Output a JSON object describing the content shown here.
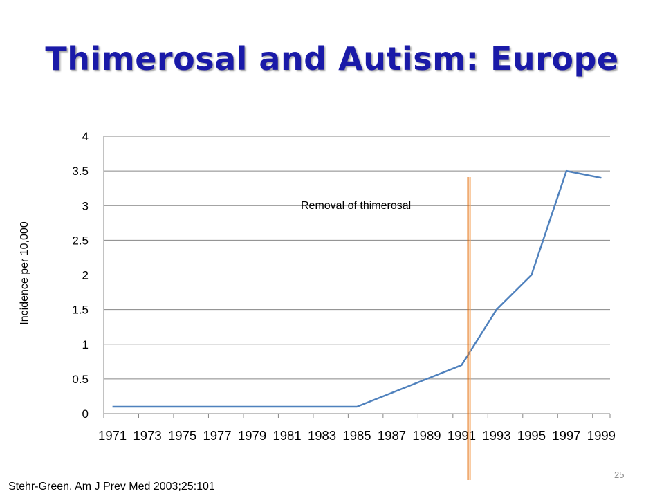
{
  "slide": {
    "title": "Thimerosal and Autism: Europe",
    "citation": "Stehr-Green. Am J Prev Med 2003;25:101",
    "page_number": "25"
  },
  "chart_data": {
    "type": "line",
    "title": "",
    "xlabel": "",
    "ylabel": "Incidence per 10,000",
    "x": [
      1971,
      1972,
      1973,
      1974,
      1975,
      1976,
      1977,
      1978,
      1979,
      1980,
      1981,
      1982,
      1983,
      1984,
      1985,
      1986,
      1987,
      1988,
      1989,
      1990,
      1991,
      1992,
      1993,
      1994,
      1995,
      1996,
      1997,
      1998,
      1999
    ],
    "tick_labels": [
      "1971",
      "1973",
      "1975",
      "1977",
      "1979",
      "1981",
      "1983",
      "1985",
      "1987",
      "1989",
      "1991",
      "1993",
      "1995",
      "1997",
      "1999"
    ],
    "series": [
      {
        "name": "",
        "x": [
          1971,
          1985,
          1991,
          1993,
          1995,
          1997,
          1999
        ],
        "values": [
          0.1,
          0.1,
          0.7,
          1.5,
          2.0,
          3.5,
          3.4
        ],
        "color": "#4f81bd"
      }
    ],
    "ylim": [
      0,
      4
    ],
    "yticks": [
      0,
      0.5,
      1,
      1.5,
      2,
      2.5,
      3,
      3.5,
      4
    ],
    "grid": true,
    "legend": "none",
    "annotations": [
      {
        "label": "Removal of thimerosal",
        "x": 1991.5,
        "color": "#e46c0a"
      }
    ]
  }
}
